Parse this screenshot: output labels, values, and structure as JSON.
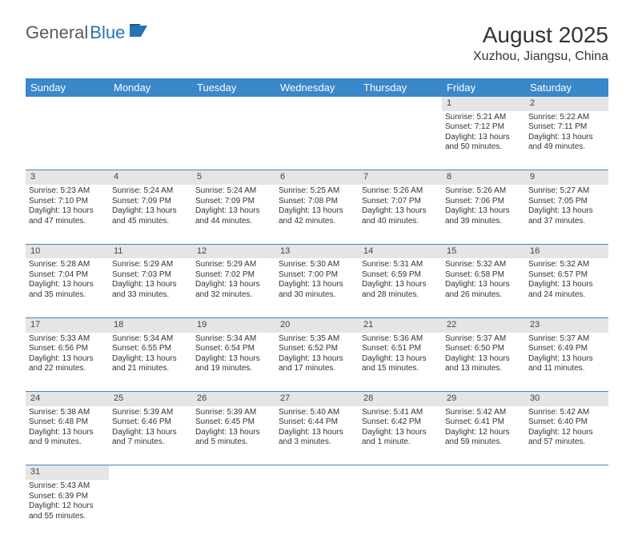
{
  "logo": {
    "left": "General",
    "right": "Blue"
  },
  "title": "August 2025",
  "location": "Xuzhou, Jiangsu, China",
  "colors": {
    "header_bg": "#3a87c9",
    "header_text": "#ffffff",
    "daynum_bg": "#e5e5e5",
    "row_border": "#3a87c9",
    "logo_gray": "#5a5a5a",
    "logo_blue": "#2673b8"
  },
  "weekdays": [
    "Sunday",
    "Monday",
    "Tuesday",
    "Wednesday",
    "Thursday",
    "Friday",
    "Saturday"
  ],
  "weeks": [
    [
      null,
      null,
      null,
      null,
      null,
      {
        "n": "1",
        "sr": "Sunrise: 5:21 AM",
        "ss": "Sunset: 7:12 PM",
        "d1": "Daylight: 13 hours",
        "d2": "and 50 minutes."
      },
      {
        "n": "2",
        "sr": "Sunrise: 5:22 AM",
        "ss": "Sunset: 7:11 PM",
        "d1": "Daylight: 13 hours",
        "d2": "and 49 minutes."
      }
    ],
    [
      {
        "n": "3",
        "sr": "Sunrise: 5:23 AM",
        "ss": "Sunset: 7:10 PM",
        "d1": "Daylight: 13 hours",
        "d2": "and 47 minutes."
      },
      {
        "n": "4",
        "sr": "Sunrise: 5:24 AM",
        "ss": "Sunset: 7:09 PM",
        "d1": "Daylight: 13 hours",
        "d2": "and 45 minutes."
      },
      {
        "n": "5",
        "sr": "Sunrise: 5:24 AM",
        "ss": "Sunset: 7:09 PM",
        "d1": "Daylight: 13 hours",
        "d2": "and 44 minutes."
      },
      {
        "n": "6",
        "sr": "Sunrise: 5:25 AM",
        "ss": "Sunset: 7:08 PM",
        "d1": "Daylight: 13 hours",
        "d2": "and 42 minutes."
      },
      {
        "n": "7",
        "sr": "Sunrise: 5:26 AM",
        "ss": "Sunset: 7:07 PM",
        "d1": "Daylight: 13 hours",
        "d2": "and 40 minutes."
      },
      {
        "n": "8",
        "sr": "Sunrise: 5:26 AM",
        "ss": "Sunset: 7:06 PM",
        "d1": "Daylight: 13 hours",
        "d2": "and 39 minutes."
      },
      {
        "n": "9",
        "sr": "Sunrise: 5:27 AM",
        "ss": "Sunset: 7:05 PM",
        "d1": "Daylight: 13 hours",
        "d2": "and 37 minutes."
      }
    ],
    [
      {
        "n": "10",
        "sr": "Sunrise: 5:28 AM",
        "ss": "Sunset: 7:04 PM",
        "d1": "Daylight: 13 hours",
        "d2": "and 35 minutes."
      },
      {
        "n": "11",
        "sr": "Sunrise: 5:29 AM",
        "ss": "Sunset: 7:03 PM",
        "d1": "Daylight: 13 hours",
        "d2": "and 33 minutes."
      },
      {
        "n": "12",
        "sr": "Sunrise: 5:29 AM",
        "ss": "Sunset: 7:02 PM",
        "d1": "Daylight: 13 hours",
        "d2": "and 32 minutes."
      },
      {
        "n": "13",
        "sr": "Sunrise: 5:30 AM",
        "ss": "Sunset: 7:00 PM",
        "d1": "Daylight: 13 hours",
        "d2": "and 30 minutes."
      },
      {
        "n": "14",
        "sr": "Sunrise: 5:31 AM",
        "ss": "Sunset: 6:59 PM",
        "d1": "Daylight: 13 hours",
        "d2": "and 28 minutes."
      },
      {
        "n": "15",
        "sr": "Sunrise: 5:32 AM",
        "ss": "Sunset: 6:58 PM",
        "d1": "Daylight: 13 hours",
        "d2": "and 26 minutes."
      },
      {
        "n": "16",
        "sr": "Sunrise: 5:32 AM",
        "ss": "Sunset: 6:57 PM",
        "d1": "Daylight: 13 hours",
        "d2": "and 24 minutes."
      }
    ],
    [
      {
        "n": "17",
        "sr": "Sunrise: 5:33 AM",
        "ss": "Sunset: 6:56 PM",
        "d1": "Daylight: 13 hours",
        "d2": "and 22 minutes."
      },
      {
        "n": "18",
        "sr": "Sunrise: 5:34 AM",
        "ss": "Sunset: 6:55 PM",
        "d1": "Daylight: 13 hours",
        "d2": "and 21 minutes."
      },
      {
        "n": "19",
        "sr": "Sunrise: 5:34 AM",
        "ss": "Sunset: 6:54 PM",
        "d1": "Daylight: 13 hours",
        "d2": "and 19 minutes."
      },
      {
        "n": "20",
        "sr": "Sunrise: 5:35 AM",
        "ss": "Sunset: 6:52 PM",
        "d1": "Daylight: 13 hours",
        "d2": "and 17 minutes."
      },
      {
        "n": "21",
        "sr": "Sunrise: 5:36 AM",
        "ss": "Sunset: 6:51 PM",
        "d1": "Daylight: 13 hours",
        "d2": "and 15 minutes."
      },
      {
        "n": "22",
        "sr": "Sunrise: 5:37 AM",
        "ss": "Sunset: 6:50 PM",
        "d1": "Daylight: 13 hours",
        "d2": "and 13 minutes."
      },
      {
        "n": "23",
        "sr": "Sunrise: 5:37 AM",
        "ss": "Sunset: 6:49 PM",
        "d1": "Daylight: 13 hours",
        "d2": "and 11 minutes."
      }
    ],
    [
      {
        "n": "24",
        "sr": "Sunrise: 5:38 AM",
        "ss": "Sunset: 6:48 PM",
        "d1": "Daylight: 13 hours",
        "d2": "and 9 minutes."
      },
      {
        "n": "25",
        "sr": "Sunrise: 5:39 AM",
        "ss": "Sunset: 6:46 PM",
        "d1": "Daylight: 13 hours",
        "d2": "and 7 minutes."
      },
      {
        "n": "26",
        "sr": "Sunrise: 5:39 AM",
        "ss": "Sunset: 6:45 PM",
        "d1": "Daylight: 13 hours",
        "d2": "and 5 minutes."
      },
      {
        "n": "27",
        "sr": "Sunrise: 5:40 AM",
        "ss": "Sunset: 6:44 PM",
        "d1": "Daylight: 13 hours",
        "d2": "and 3 minutes."
      },
      {
        "n": "28",
        "sr": "Sunrise: 5:41 AM",
        "ss": "Sunset: 6:42 PM",
        "d1": "Daylight: 13 hours",
        "d2": "and 1 minute."
      },
      {
        "n": "29",
        "sr": "Sunrise: 5:42 AM",
        "ss": "Sunset: 6:41 PM",
        "d1": "Daylight: 12 hours",
        "d2": "and 59 minutes."
      },
      {
        "n": "30",
        "sr": "Sunrise: 5:42 AM",
        "ss": "Sunset: 6:40 PM",
        "d1": "Daylight: 12 hours",
        "d2": "and 57 minutes."
      }
    ],
    [
      {
        "n": "31",
        "sr": "Sunrise: 5:43 AM",
        "ss": "Sunset: 6:39 PM",
        "d1": "Daylight: 12 hours",
        "d2": "and 55 minutes."
      },
      null,
      null,
      null,
      null,
      null,
      null
    ]
  ]
}
